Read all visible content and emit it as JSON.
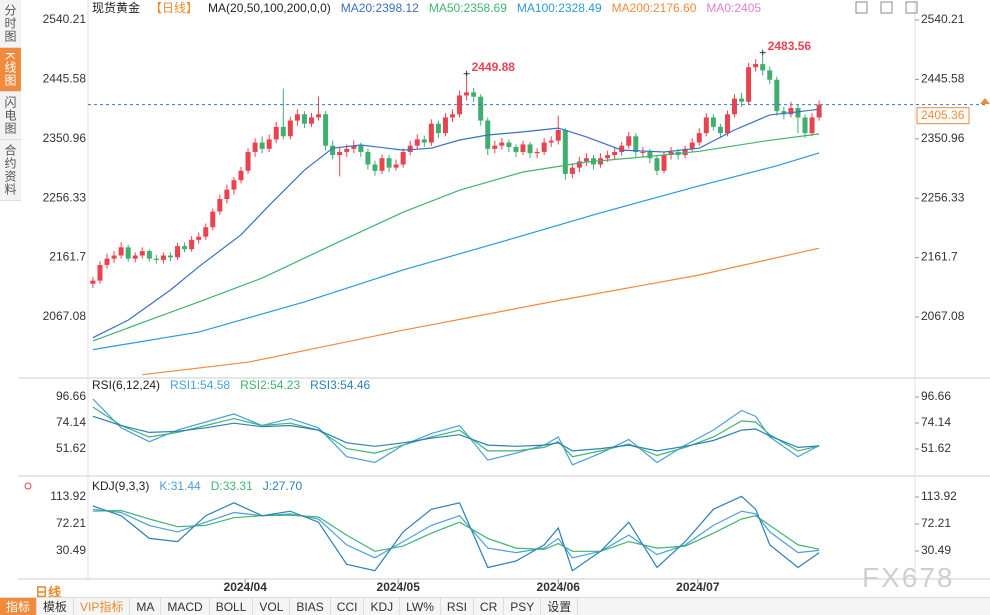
{
  "sidebar": [
    "分时图",
    "K线图",
    "闪电图",
    "合约资料"
  ],
  "chart_data": [
    {
      "type": "candlestick",
      "title": "现货黄金",
      "period": "【日线】",
      "indicator": "MA(20,50,100,200,0,0)",
      "up_color": "#e8434f",
      "down_color": "#3fae6e",
      "xlim": [
        -0.7,
        116.6
      ],
      "xticks": [
        {
          "value": 21.6,
          "label": "2024/04"
        },
        {
          "value": 43.3,
          "label": "2024/05"
        },
        {
          "value": 66,
          "label": "2024/06"
        },
        {
          "value": 85.8,
          "label": "2024/07"
        }
      ],
      "ylim": [
        1974.6,
        2553
      ],
      "yticks": [
        2540.21,
        2445.58,
        2350.96,
        2256.33,
        2161.7,
        2067.08
      ],
      "open": [
        2120,
        2125,
        2150,
        2160,
        2165,
        2178,
        2160,
        2165,
        2172,
        2160,
        2158,
        2165,
        2162,
        2180,
        2175,
        2190,
        2195,
        2210,
        2235,
        2255,
        2270,
        2285,
        2300,
        2330,
        2345,
        2335,
        2350,
        2370,
        2355,
        2380,
        2390,
        2375,
        2385,
        2390,
        2340,
        2325,
        2330,
        2335,
        2340,
        2330,
        2310,
        2300,
        2320,
        2305,
        2310,
        2330,
        2340,
        2350,
        2345,
        2375,
        2360,
        2385,
        2390,
        2420,
        2425,
        2418,
        2380,
        2335,
        2340,
        2345,
        2338,
        2330,
        2342,
        2328,
        2330,
        2345,
        2348,
        2365,
        2295,
        2305,
        2315,
        2320,
        2310,
        2320,
        2325,
        2330,
        2340,
        2355,
        2330,
        2330,
        2320,
        2300,
        2325,
        2330,
        2325,
        2335,
        2345,
        2360,
        2385,
        2370,
        2360,
        2390,
        2415,
        2410,
        2465,
        2470,
        2460,
        2445,
        2395,
        2390,
        2400,
        2385,
        2360,
        2385
      ],
      "high": [
        2131,
        2156,
        2168,
        2172,
        2186,
        2182,
        2170,
        2178,
        2175,
        2166,
        2170,
        2170,
        2185,
        2186,
        2196,
        2202,
        2216,
        2240,
        2262,
        2278,
        2290,
        2306,
        2336,
        2352,
        2355,
        2358,
        2378,
        2431,
        2386,
        2398,
        2395,
        2392,
        2418,
        2395,
        2348,
        2338,
        2342,
        2348,
        2345,
        2335,
        2316,
        2326,
        2325,
        2318,
        2336,
        2348,
        2358,
        2356,
        2382,
        2380,
        2392,
        2398,
        2428,
        2449.88,
        2432,
        2422,
        2385,
        2348,
        2352,
        2350,
        2342,
        2348,
        2346,
        2336,
        2352,
        2355,
        2388,
        2368,
        2312,
        2322,
        2328,
        2325,
        2328,
        2332,
        2338,
        2346,
        2362,
        2360,
        2338,
        2335,
        2325,
        2330,
        2338,
        2335,
        2340,
        2352,
        2368,
        2392,
        2390,
        2375,
        2396,
        2422,
        2424,
        2472,
        2478,
        2483.56,
        2466,
        2450,
        2402,
        2410,
        2405,
        2390,
        2392,
        2412
      ],
      "low": [
        2113,
        2120,
        2144,
        2153,
        2160,
        2155,
        2154,
        2160,
        2155,
        2152,
        2152,
        2156,
        2158,
        2170,
        2171,
        2184,
        2190,
        2205,
        2230,
        2248,
        2262,
        2280,
        2295,
        2322,
        2328,
        2330,
        2344,
        2350,
        2350,
        2372,
        2368,
        2370,
        2380,
        2332,
        2318,
        2291,
        2322,
        2328,
        2322,
        2302,
        2292,
        2295,
        2298,
        2300,
        2305,
        2325,
        2334,
        2338,
        2340,
        2352,
        2355,
        2378,
        2385,
        2412,
        2410,
        2372,
        2325,
        2328,
        2334,
        2330,
        2322,
        2325,
        2320,
        2320,
        2325,
        2338,
        2342,
        2286,
        2288,
        2298,
        2308,
        2302,
        2305,
        2314,
        2318,
        2324,
        2335,
        2322,
        2322,
        2312,
        2293,
        2296,
        2318,
        2318,
        2320,
        2330,
        2340,
        2355,
        2364,
        2352,
        2355,
        2385,
        2402,
        2405,
        2458,
        2452,
        2438,
        2388,
        2382,
        2385,
        2360,
        2352,
        2355,
        2380
      ],
      "close": [
        2125,
        2150,
        2160,
        2165,
        2178,
        2160,
        2165,
        2172,
        2160,
        2158,
        2165,
        2162,
        2180,
        2175,
        2190,
        2195,
        2210,
        2235,
        2255,
        2270,
        2285,
        2300,
        2330,
        2345,
        2335,
        2350,
        2370,
        2355,
        2380,
        2390,
        2375,
        2385,
        2390,
        2340,
        2325,
        2330,
        2335,
        2340,
        2330,
        2310,
        2300,
        2320,
        2305,
        2310,
        2330,
        2340,
        2350,
        2345,
        2375,
        2360,
        2385,
        2390,
        2420,
        2425,
        2418,
        2380,
        2335,
        2340,
        2345,
        2338,
        2330,
        2342,
        2328,
        2330,
        2345,
        2348,
        2365,
        2295,
        2305,
        2315,
        2320,
        2310,
        2320,
        2325,
        2330,
        2340,
        2355,
        2330,
        2330,
        2320,
        2300,
        2325,
        2330,
        2325,
        2335,
        2345,
        2360,
        2385,
        2370,
        2360,
        2390,
        2415,
        2410,
        2465,
        2470,
        2460,
        2445,
        2395,
        2390,
        2400,
        2385,
        2360,
        2385,
        2405.36
      ],
      "series": [
        {
          "name": "MA20:2398.12",
          "color": "#3b6fc4",
          "x": [
            0,
            5,
            11,
            15,
            21,
            25,
            30,
            34,
            38,
            44,
            48,
            52,
            56,
            61,
            66,
            70,
            75,
            81,
            86,
            91,
            96,
            100,
            103
          ],
          "values": [
            2034,
            2062,
            2110,
            2147,
            2198,
            2245,
            2301,
            2336,
            2341,
            2333,
            2336,
            2349,
            2357,
            2362,
            2368,
            2354,
            2333,
            2330,
            2336,
            2365,
            2389,
            2394,
            2398.12
          ]
        },
        {
          "name": "MA50:2358.69",
          "color": "#3fb56f",
          "x": [
            0,
            8,
            15,
            24,
            34,
            44,
            52,
            61,
            70,
            78,
            86,
            95,
            103
          ],
          "values": [
            2029,
            2062,
            2091,
            2129,
            2182,
            2234,
            2269,
            2298,
            2314,
            2322,
            2331,
            2347,
            2358.69
          ]
        },
        {
          "name": "MA100:2328.49",
          "color": "#2c9ad8",
          "x": [
            0,
            15,
            30,
            44,
            58,
            72,
            86,
            97,
            103
          ],
          "values": [
            2015,
            2043,
            2091,
            2142,
            2187,
            2233,
            2276,
            2308,
            2328.49
          ]
        },
        {
          "name": "MA200:2176.60",
          "color": "#f08a3c",
          "x": [
            7,
            22,
            44,
            65,
            86,
            103
          ],
          "values": [
            1975,
            1995,
            2046,
            2091,
            2134,
            2176.6
          ]
        }
      ],
      "extra_legend": {
        "name": "MA0:2405",
        "color": "#e07fd0"
      },
      "annotations": [
        "2449.88",
        "2483.56"
      ],
      "annotation_color": "#e8434f",
      "last_price": 2405.36,
      "last_price_label": "2405.36",
      "last_price_color": "#f08a3c"
    },
    {
      "type": "line",
      "title": "RSI(6,12,24)",
      "xlim": [
        -0.7,
        116.6
      ],
      "ylim": [
        30,
        108.8
      ],
      "yticks": [
        96.66,
        74.14,
        51.62
      ],
      "x": [
        0,
        4,
        8,
        12,
        16,
        20,
        24,
        28,
        32,
        36,
        40,
        44,
        48,
        52,
        56,
        60,
        64,
        66,
        68,
        72,
        76,
        80,
        84,
        88,
        92,
        94,
        96,
        100,
        103
      ],
      "series": [
        {
          "name": "RSI1:54.58",
          "color": "#4a9ee0",
          "values": [
            95,
            70,
            58,
            68,
            75,
            82,
            72,
            78,
            70,
            45,
            40,
            55,
            65,
            72,
            42,
            48,
            55,
            62,
            38,
            48,
            60,
            40,
            55,
            68,
            85,
            80,
            62,
            45,
            54.58
          ]
        },
        {
          "name": "RSI2:54.23",
          "color": "#3fb56f",
          "values": [
            88,
            72,
            62,
            66,
            72,
            78,
            72,
            74,
            68,
            52,
            48,
            55,
            62,
            68,
            50,
            50,
            53,
            58,
            45,
            50,
            56,
            46,
            53,
            62,
            76,
            75,
            64,
            50,
            54.23
          ]
        },
        {
          "name": "RSI3:54.46",
          "color": "#2c7fb8",
          "values": [
            80,
            72,
            66,
            67,
            70,
            74,
            71,
            72,
            68,
            57,
            54,
            57,
            61,
            64,
            55,
            54,
            55,
            57,
            50,
            52,
            55,
            50,
            54,
            59,
            68,
            69,
            63,
            53,
            54.46
          ]
        }
      ]
    },
    {
      "type": "line",
      "title": "KDJ(9,3,3)",
      "xlim": [
        -0.7,
        116.6
      ],
      "ylim": [
        -14.3,
        137.1
      ],
      "yticks": [
        113.92,
        72.21,
        30.49
      ],
      "x": [
        0,
        4,
        8,
        12,
        16,
        20,
        24,
        28,
        32,
        36,
        40,
        44,
        48,
        52,
        56,
        60,
        64,
        66,
        68,
        72,
        76,
        80,
        84,
        88,
        92,
        94,
        96,
        100,
        103
      ],
      "series": [
        {
          "name": "K:31.44",
          "color": "#4a9ee0",
          "values": [
            95,
            90,
            70,
            60,
            75,
            90,
            85,
            88,
            80,
            40,
            20,
            45,
            70,
            85,
            35,
            28,
            35,
            50,
            20,
            30,
            55,
            25,
            40,
            70,
            92,
            88,
            60,
            28,
            31.44
          ]
        },
        {
          "name": "D:33.31",
          "color": "#3fb56f",
          "values": [
            92,
            93,
            80,
            68,
            70,
            82,
            85,
            86,
            83,
            55,
            30,
            38,
            58,
            75,
            50,
            35,
            33,
            42,
            30,
            30,
            45,
            35,
            38,
            58,
            80,
            85,
            70,
            40,
            33.31
          ]
        },
        {
          "name": "J:27.70",
          "color": "#2c7fb8",
          "values": [
            100,
            85,
            50,
            45,
            85,
            105,
            85,
            92,
            75,
            10,
            0,
            60,
            95,
            105,
            5,
            15,
            40,
            66,
            0,
            30,
            75,
            5,
            45,
            95,
            115,
            95,
            40,
            5,
            27.7
          ]
        }
      ]
    }
  ],
  "footer": {
    "period": "日线",
    "tabs": [
      "指标",
      "模板",
      "VIP指标",
      "MA",
      "MACD",
      "BOLL",
      "VOL",
      "BIAS",
      "CCI",
      "KDJ",
      "LW%",
      "RSI",
      "CR",
      "PSY",
      "设置"
    ]
  },
  "watermark": "FX678"
}
